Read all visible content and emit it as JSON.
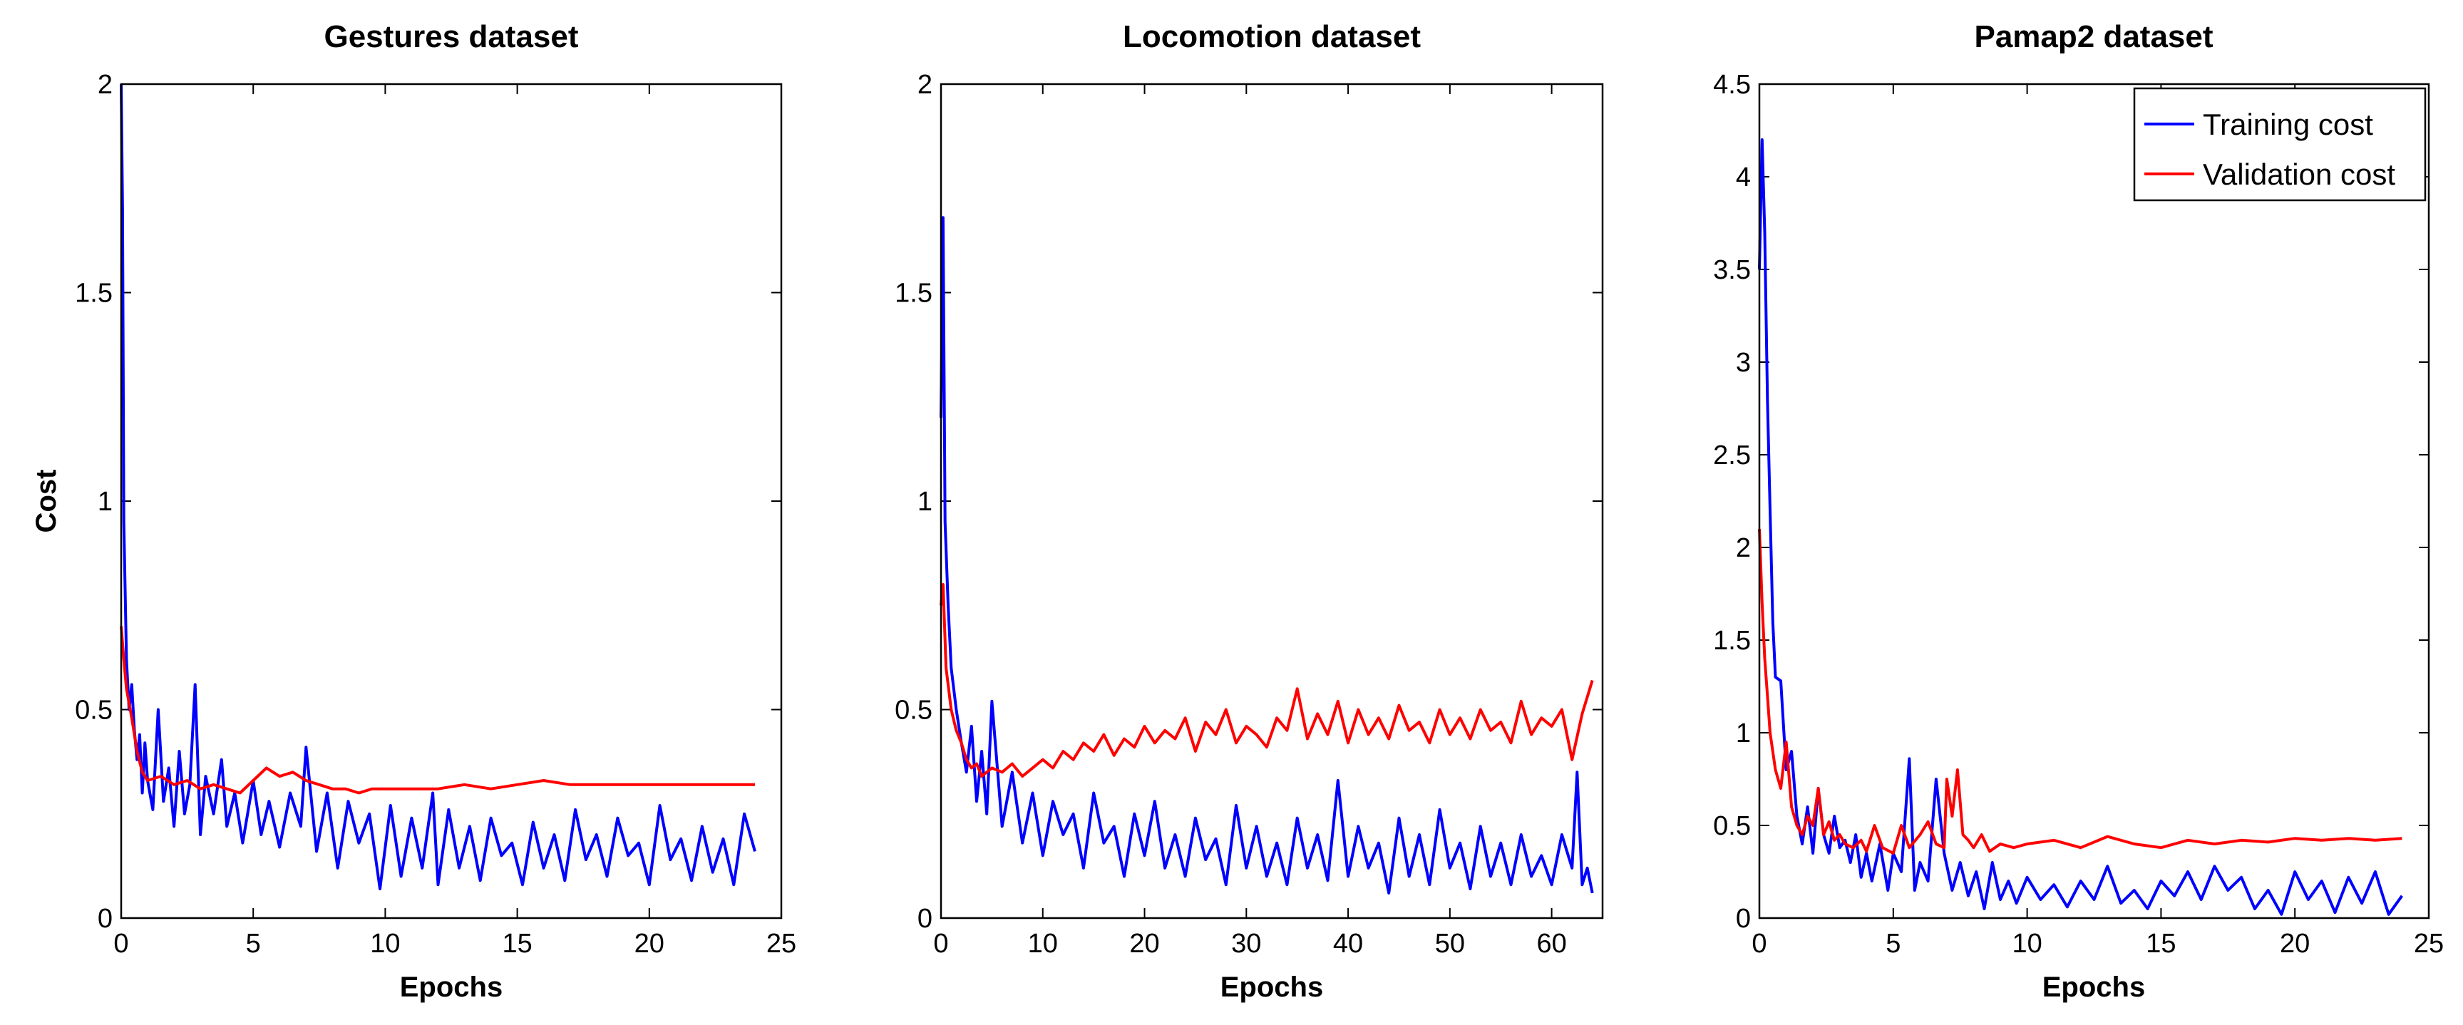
{
  "chart_data": [
    {
      "type": "line",
      "title": "Gestures dataset",
      "xlabel": "Epochs",
      "ylabel": "Cost",
      "xlim": [
        0,
        25
      ],
      "ylim": [
        0,
        2
      ],
      "xticks": [
        0,
        5,
        10,
        15,
        20,
        25
      ],
      "yticks": [
        0,
        0.5,
        1,
        1.5,
        2
      ],
      "xtick_labels": [
        "0",
        "5",
        "10",
        "15",
        "20",
        "25"
      ],
      "ytick_labels": [
        "0",
        "0.5",
        "1",
        "1.5",
        "2"
      ],
      "series": [
        {
          "name": "Training cost",
          "color": "#0000ff",
          "x": [
            0,
            0.05,
            0.1,
            0.2,
            0.3,
            0.4,
            0.5,
            0.6,
            0.7,
            0.8,
            0.9,
            1.0,
            1.2,
            1.4,
            1.6,
            1.8,
            2.0,
            2.2,
            2.4,
            2.6,
            2.8,
            3.0,
            3.2,
            3.5,
            3.8,
            4.0,
            4.3,
            4.6,
            5.0,
            5.3,
            5.6,
            6.0,
            6.4,
            6.8,
            7.0,
            7.4,
            7.8,
            8.2,
            8.6,
            9.0,
            9.4,
            9.8,
            10.2,
            10.6,
            11.0,
            11.4,
            11.8,
            12.0,
            12.4,
            12.8,
            13.2,
            13.6,
            14.0,
            14.4,
            14.8,
            15.2,
            15.6,
            16.0,
            16.4,
            16.8,
            17.2,
            17.6,
            18.0,
            18.4,
            18.8,
            19.2,
            19.6,
            20.0,
            20.4,
            20.8,
            21.2,
            21.6,
            22.0,
            22.4,
            22.8,
            23.2,
            23.6,
            24.0
          ],
          "y": [
            2.0,
            1.7,
            0.95,
            0.62,
            0.5,
            0.56,
            0.45,
            0.38,
            0.44,
            0.3,
            0.42,
            0.33,
            0.26,
            0.5,
            0.28,
            0.36,
            0.22,
            0.4,
            0.25,
            0.32,
            0.56,
            0.2,
            0.34,
            0.25,
            0.38,
            0.22,
            0.3,
            0.18,
            0.33,
            0.2,
            0.28,
            0.17,
            0.3,
            0.22,
            0.41,
            0.16,
            0.3,
            0.12,
            0.28,
            0.18,
            0.25,
            0.07,
            0.27,
            0.1,
            0.24,
            0.12,
            0.3,
            0.08,
            0.26,
            0.12,
            0.22,
            0.09,
            0.24,
            0.15,
            0.18,
            0.08,
            0.23,
            0.12,
            0.2,
            0.09,
            0.26,
            0.14,
            0.2,
            0.1,
            0.24,
            0.15,
            0.18,
            0.08,
            0.27,
            0.14,
            0.19,
            0.09,
            0.22,
            0.11,
            0.19,
            0.08,
            0.25,
            0.16
          ]
        },
        {
          "name": "Validation cost",
          "color": "#ff0000",
          "x": [
            0,
            0.1,
            0.2,
            0.4,
            0.6,
            0.8,
            1.0,
            1.5,
            2.0,
            2.5,
            3.0,
            3.5,
            4.0,
            4.5,
            5.0,
            5.5,
            6.0,
            6.5,
            7.0,
            7.5,
            8.0,
            8.5,
            9.0,
            9.5,
            10.0,
            11.0,
            12.0,
            13.0,
            14.0,
            15.0,
            16.0,
            17.0,
            18.0,
            19.0,
            20.0,
            21.0,
            22.0,
            23.0,
            24.0
          ],
          "y": [
            0.7,
            0.62,
            0.55,
            0.48,
            0.4,
            0.35,
            0.33,
            0.34,
            0.32,
            0.33,
            0.31,
            0.32,
            0.31,
            0.3,
            0.33,
            0.36,
            0.34,
            0.35,
            0.33,
            0.32,
            0.31,
            0.31,
            0.3,
            0.31,
            0.31,
            0.31,
            0.31,
            0.32,
            0.31,
            0.32,
            0.33,
            0.32,
            0.32,
            0.32,
            0.32,
            0.32,
            0.32,
            0.32,
            0.32
          ]
        }
      ]
    },
    {
      "type": "line",
      "title": "Locomotion dataset",
      "xlabel": "Epochs",
      "ylabel": "",
      "xlim": [
        0,
        65
      ],
      "ylim": [
        0,
        2
      ],
      "xticks": [
        0,
        10,
        20,
        30,
        40,
        50,
        60
      ],
      "yticks": [
        0,
        0.5,
        1,
        1.5,
        2
      ],
      "xtick_labels": [
        "0",
        "10",
        "20",
        "30",
        "40",
        "50",
        "60"
      ],
      "ytick_labels": [
        "0",
        "0.5",
        "1",
        "1.5",
        "2"
      ],
      "series": [
        {
          "name": "Training cost",
          "color": "#0000ff",
          "x": [
            0,
            0.2,
            0.4,
            0.7,
            1.0,
            1.5,
            2.0,
            2.5,
            3.0,
            3.5,
            4.0,
            4.5,
            5.0,
            6.0,
            7.0,
            8.0,
            9.0,
            10.0,
            11.0,
            12.0,
            13.0,
            14.0,
            15.0,
            16.0,
            17.0,
            18.0,
            19.0,
            20.0,
            21.0,
            22.0,
            23.0,
            24.0,
            25.0,
            26.0,
            27.0,
            28.0,
            29.0,
            30.0,
            31.0,
            32.0,
            33.0,
            34.0,
            35.0,
            36.0,
            37.0,
            38.0,
            39.0,
            40.0,
            41.0,
            42.0,
            43.0,
            44.0,
            45.0,
            46.0,
            47.0,
            48.0,
            49.0,
            50.0,
            51.0,
            52.0,
            53.0,
            54.0,
            55.0,
            56.0,
            57.0,
            58.0,
            59.0,
            60.0,
            61.0,
            62.0,
            62.5,
            63.0,
            63.5,
            64.0
          ],
          "y": [
            1.2,
            1.68,
            0.95,
            0.75,
            0.6,
            0.5,
            0.42,
            0.35,
            0.46,
            0.28,
            0.4,
            0.25,
            0.52,
            0.22,
            0.35,
            0.18,
            0.3,
            0.15,
            0.28,
            0.2,
            0.25,
            0.12,
            0.3,
            0.18,
            0.22,
            0.1,
            0.25,
            0.15,
            0.28,
            0.12,
            0.2,
            0.1,
            0.24,
            0.14,
            0.19,
            0.08,
            0.27,
            0.12,
            0.22,
            0.1,
            0.18,
            0.08,
            0.24,
            0.12,
            0.2,
            0.09,
            0.33,
            0.1,
            0.22,
            0.12,
            0.18,
            0.06,
            0.24,
            0.1,
            0.2,
            0.08,
            0.26,
            0.12,
            0.18,
            0.07,
            0.22,
            0.1,
            0.18,
            0.08,
            0.2,
            0.1,
            0.15,
            0.08,
            0.2,
            0.12,
            0.35,
            0.08,
            0.12,
            0.06
          ]
        },
        {
          "name": "Validation cost",
          "color": "#ff0000",
          "x": [
            0,
            0.2,
            0.5,
            1.0,
            1.5,
            2.0,
            2.5,
            3.0,
            3.5,
            4.0,
            5.0,
            6.0,
            7.0,
            8.0,
            9.0,
            10.0,
            11.0,
            12.0,
            13.0,
            14.0,
            15.0,
            16.0,
            17.0,
            18.0,
            19.0,
            20.0,
            21.0,
            22.0,
            23.0,
            24.0,
            25.0,
            26.0,
            27.0,
            28.0,
            29.0,
            30.0,
            31.0,
            32.0,
            33.0,
            34.0,
            35.0,
            36.0,
            37.0,
            38.0,
            39.0,
            40.0,
            41.0,
            42.0,
            43.0,
            44.0,
            45.0,
            46.0,
            47.0,
            48.0,
            49.0,
            50.0,
            51.0,
            52.0,
            53.0,
            54.0,
            55.0,
            56.0,
            57.0,
            58.0,
            59.0,
            60.0,
            61.0,
            62.0,
            63.0,
            64.0
          ],
          "y": [
            0.75,
            0.8,
            0.6,
            0.5,
            0.45,
            0.42,
            0.38,
            0.36,
            0.37,
            0.34,
            0.36,
            0.35,
            0.37,
            0.34,
            0.36,
            0.38,
            0.36,
            0.4,
            0.38,
            0.42,
            0.4,
            0.44,
            0.39,
            0.43,
            0.41,
            0.46,
            0.42,
            0.45,
            0.43,
            0.48,
            0.4,
            0.47,
            0.44,
            0.5,
            0.42,
            0.46,
            0.44,
            0.41,
            0.48,
            0.45,
            0.55,
            0.43,
            0.49,
            0.44,
            0.52,
            0.42,
            0.5,
            0.44,
            0.48,
            0.43,
            0.51,
            0.45,
            0.47,
            0.42,
            0.5,
            0.44,
            0.48,
            0.43,
            0.5,
            0.45,
            0.47,
            0.42,
            0.52,
            0.44,
            0.48,
            0.46,
            0.5,
            0.38,
            0.49,
            0.57
          ]
        }
      ]
    },
    {
      "type": "line",
      "title": "Pamap2 dataset",
      "xlabel": "Epochs",
      "ylabel": "",
      "xlim": [
        0,
        25
      ],
      "ylim": [
        0,
        4.5
      ],
      "xticks": [
        0,
        5,
        10,
        15,
        20,
        25
      ],
      "yticks": [
        0,
        0.5,
        1,
        1.5,
        2,
        2.5,
        3,
        3.5,
        4,
        4.5
      ],
      "xtick_labels": [
        "0",
        "5",
        "10",
        "15",
        "20",
        "25"
      ],
      "ytick_labels": [
        "0",
        "0.5",
        "1",
        "1.5",
        "2",
        "2.5",
        "3",
        "3.5",
        "4",
        "4.5"
      ],
      "legend": {
        "position": "top-right",
        "entries": [
          "Training cost",
          "Validation cost"
        ]
      },
      "series": [
        {
          "name": "Training cost",
          "color": "#0000ff",
          "x": [
            0,
            0.1,
            0.2,
            0.3,
            0.4,
            0.5,
            0.6,
            0.8,
            1.0,
            1.2,
            1.4,
            1.6,
            1.8,
            2.0,
            2.2,
            2.4,
            2.6,
            2.8,
            3.0,
            3.2,
            3.4,
            3.6,
            3.8,
            4.0,
            4.2,
            4.5,
            4.8,
            5.0,
            5.3,
            5.6,
            5.8,
            6.0,
            6.3,
            6.6,
            6.9,
            7.2,
            7.5,
            7.8,
            8.1,
            8.4,
            8.7,
            9.0,
            9.3,
            9.6,
            10.0,
            10.5,
            11.0,
            11.5,
            12.0,
            12.5,
            13.0,
            13.5,
            14.0,
            14.5,
            15.0,
            15.5,
            16.0,
            16.5,
            17.0,
            17.5,
            18.0,
            18.5,
            19.0,
            19.5,
            20.0,
            20.5,
            21.0,
            21.5,
            22.0,
            22.5,
            23.0,
            23.5,
            24.0
          ],
          "y": [
            3.5,
            4.2,
            3.7,
            2.8,
            2.2,
            1.6,
            1.3,
            1.28,
            0.8,
            0.9,
            0.55,
            0.4,
            0.6,
            0.35,
            0.7,
            0.45,
            0.35,
            0.55,
            0.38,
            0.42,
            0.3,
            0.45,
            0.22,
            0.35,
            0.2,
            0.4,
            0.15,
            0.35,
            0.25,
            0.86,
            0.15,
            0.3,
            0.2,
            0.75,
            0.35,
            0.15,
            0.3,
            0.12,
            0.25,
            0.05,
            0.3,
            0.1,
            0.2,
            0.08,
            0.22,
            0.1,
            0.18,
            0.06,
            0.2,
            0.1,
            0.28,
            0.08,
            0.15,
            0.05,
            0.2,
            0.12,
            0.25,
            0.1,
            0.28,
            0.15,
            0.22,
            0.05,
            0.15,
            0.02,
            0.25,
            0.1,
            0.2,
            0.03,
            0.22,
            0.08,
            0.25,
            0.02,
            0.12
          ]
        },
        {
          "name": "Validation cost",
          "color": "#ff0000",
          "x": [
            0,
            0.1,
            0.2,
            0.3,
            0.4,
            0.6,
            0.8,
            1.0,
            1.2,
            1.4,
            1.6,
            1.8,
            2.0,
            2.2,
            2.4,
            2.6,
            2.8,
            3.0,
            3.2,
            3.5,
            3.8,
            4.0,
            4.3,
            4.6,
            5.0,
            5.3,
            5.6,
            6.0,
            6.3,
            6.6,
            6.9,
            7.0,
            7.2,
            7.4,
            7.6,
            7.8,
            8.0,
            8.3,
            8.6,
            9.0,
            9.5,
            10.0,
            11.0,
            12.0,
            13.0,
            14.0,
            15.0,
            16.0,
            17.0,
            18.0,
            19.0,
            20.0,
            21.0,
            22.0,
            23.0,
            24.0
          ],
          "y": [
            2.1,
            1.7,
            1.4,
            1.2,
            1.0,
            0.8,
            0.7,
            0.95,
            0.6,
            0.5,
            0.45,
            0.55,
            0.5,
            0.7,
            0.45,
            0.52,
            0.42,
            0.45,
            0.4,
            0.38,
            0.42,
            0.36,
            0.5,
            0.38,
            0.35,
            0.5,
            0.38,
            0.45,
            0.52,
            0.4,
            0.38,
            0.75,
            0.55,
            0.8,
            0.45,
            0.42,
            0.38,
            0.45,
            0.36,
            0.4,
            0.38,
            0.4,
            0.42,
            0.38,
            0.44,
            0.4,
            0.38,
            0.42,
            0.4,
            0.42,
            0.41,
            0.43,
            0.42,
            0.43,
            0.42,
            0.43
          ]
        }
      ]
    }
  ]
}
